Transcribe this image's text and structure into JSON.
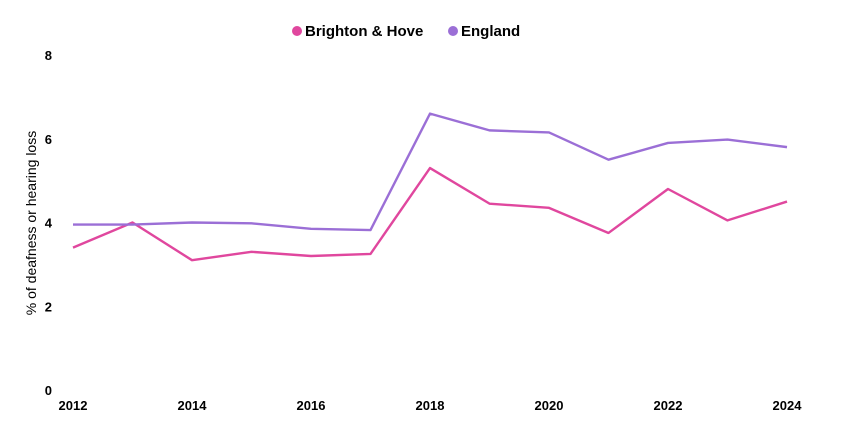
{
  "chart_data": {
    "type": "line",
    "title": "",
    "xlabel": "",
    "ylabel": "% of deafness or hearing loss",
    "xlim": [
      2012,
      2024
    ],
    "ylim": [
      0,
      8
    ],
    "x_ticks": [
      2012,
      2014,
      2016,
      2018,
      2020,
      2022,
      2024
    ],
    "x_tick_labels": [
      "2012",
      "2014",
      "2016",
      "2018",
      "2020",
      "2022",
      "2024"
    ],
    "y_ticks": [
      0,
      2,
      4,
      6,
      8
    ],
    "y_tick_labels": [
      "0",
      "2",
      "4",
      "6",
      "8"
    ],
    "grid": false,
    "legend_position": "top-center",
    "x": [
      2012,
      2013,
      2014,
      2015,
      2016,
      2017,
      2018,
      2019,
      2020,
      2021,
      2022,
      2023,
      2024
    ],
    "series": [
      {
        "name": "Brighton & Hove",
        "color": "#e0479e",
        "values": [
          3.4,
          4.0,
          3.1,
          3.3,
          3.2,
          3.25,
          5.3,
          4.45,
          4.35,
          3.75,
          4.8,
          4.05,
          4.5
        ]
      },
      {
        "name": "England",
        "color": "#9b6fd6",
        "values": [
          3.95,
          3.95,
          4.0,
          3.98,
          3.85,
          3.82,
          6.6,
          6.2,
          6.15,
          5.5,
          5.9,
          5.98,
          5.8
        ]
      }
    ]
  }
}
